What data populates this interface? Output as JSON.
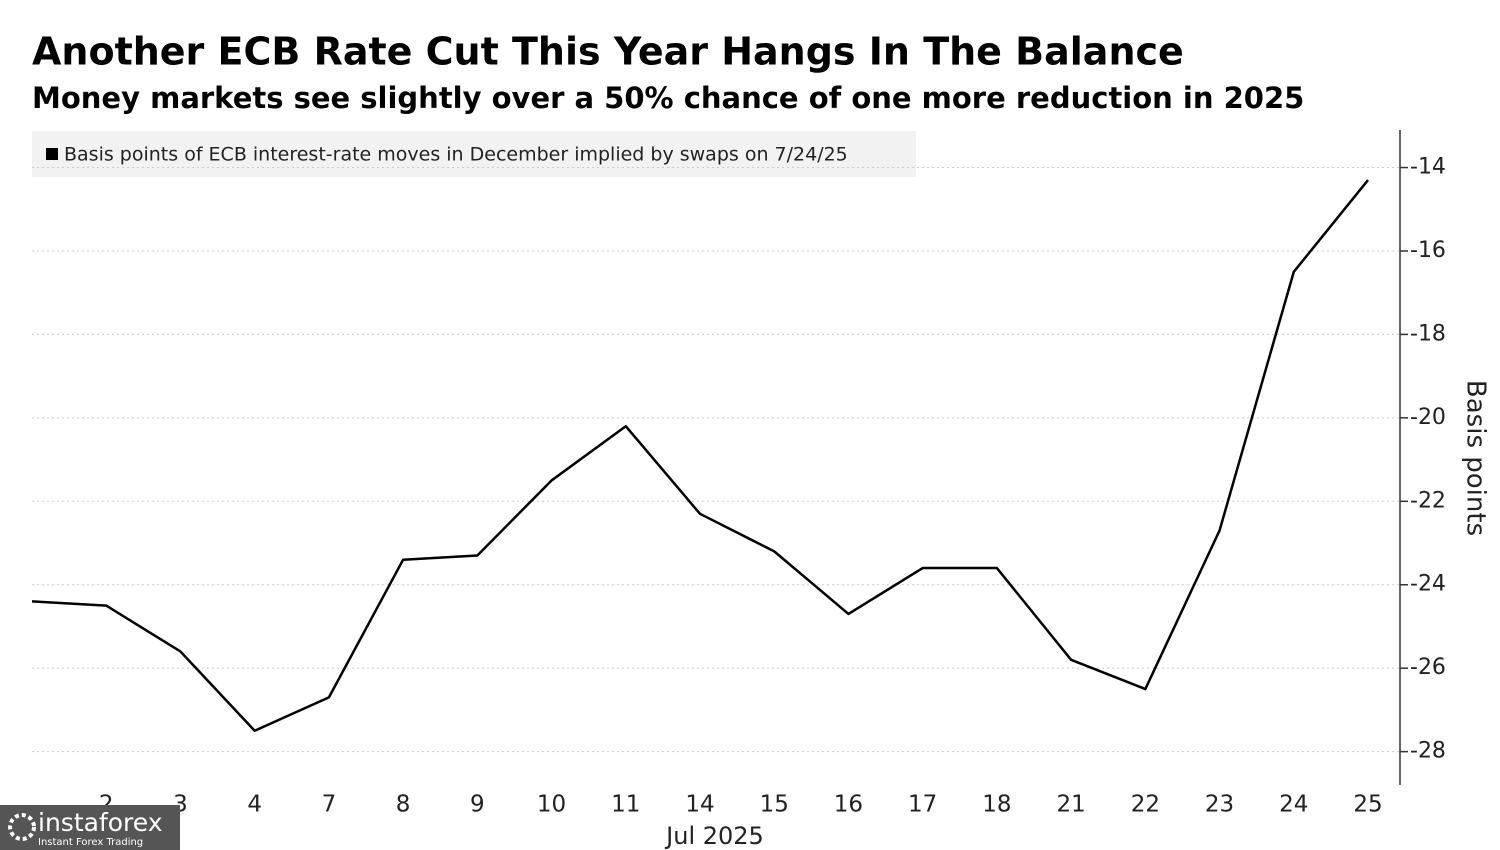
{
  "chart_data": {
    "type": "line",
    "title": "Another ECB Rate Cut This Year Hangs In The Balance",
    "subtitle": "Money markets see slightly over a 50% chance of one more reduction in 2025",
    "x_label": "Jul 2025",
    "y_label": "Basis points",
    "categories": [
      null,
      "2",
      "3",
      "4",
      "7",
      "8",
      "9",
      "10",
      "11",
      "14",
      "15",
      "16",
      "17",
      "18",
      "21",
      "22",
      "23",
      "24",
      "25"
    ],
    "series": [
      {
        "name": "Basis points of ECB interest-rate moves in December implied by swaps on 7/24/25",
        "color": "#000000",
        "values": [
          -24.4,
          -24.5,
          -25.6,
          -27.5,
          -26.7,
          -23.4,
          -23.3,
          -21.5,
          -20.2,
          -22.3,
          -23.2,
          -24.7,
          -23.6,
          -23.6,
          -25.8,
          -26.5,
          -22.7,
          -16.5,
          -14.3
        ]
      }
    ],
    "ylim": [
      -28.8,
      -13.1
    ],
    "yticks": [
      -14,
      -16,
      -18,
      -20,
      -22,
      -24,
      -26,
      -28
    ],
    "grid": true
  },
  "watermark": {
    "brand": "instaforex",
    "tagline": "Instant Forex Trading"
  }
}
